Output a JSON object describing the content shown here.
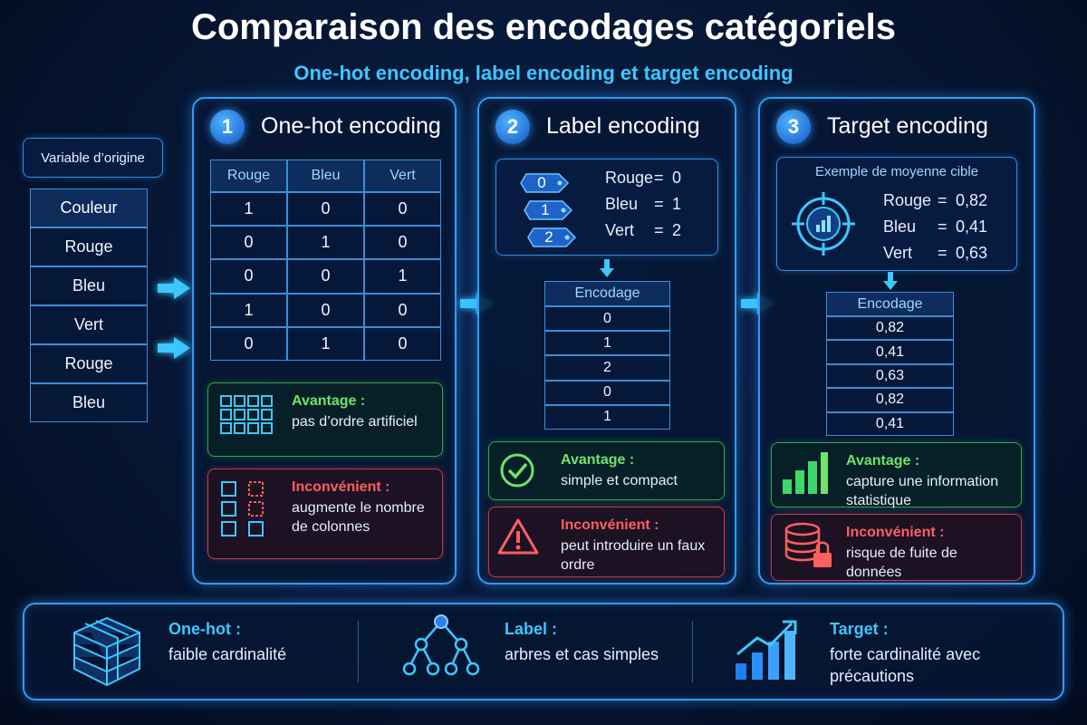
{
  "header": {
    "title": "Comparaison des encodages catégoriels",
    "subtitle": "One-hot encoding, label encoding et target encoding"
  },
  "source": {
    "label": "Variable d’origine",
    "header": "Couleur",
    "rows": [
      "Rouge",
      "Bleu",
      "Vert",
      "Rouge",
      "Bleu"
    ]
  },
  "panels": [
    {
      "number": 1,
      "title": "One-hot encoding",
      "table": {
        "columns": [
          "Rouge",
          "Bleu",
          "Vert"
        ],
        "rows": [
          [
            1,
            0,
            0
          ],
          [
            0,
            1,
            0
          ],
          [
            0,
            0,
            1
          ],
          [
            1,
            0,
            0
          ],
          [
            0,
            1,
            0
          ]
        ]
      },
      "pros": {
        "label": "Avantage :",
        "text": "pas d’ordre artificiel"
      },
      "cons": {
        "label": "Inconvénient :",
        "text": "augmente le nombre de colonnes"
      }
    },
    {
      "number": 2,
      "title": "Label encoding",
      "tags": [
        0,
        1,
        2
      ],
      "mapping": [
        {
          "name": "Rouge",
          "sign": "=",
          "code": 0
        },
        {
          "name": "Bleu",
          "sign": "=",
          "code": 1
        },
        {
          "name": "Vert",
          "sign": "=",
          "code": 2
        }
      ],
      "table": {
        "header": "Encodage",
        "rows": [
          0,
          1,
          2,
          0,
          1
        ]
      },
      "pros": {
        "label": "Avantage :",
        "text": "simple et compact"
      },
      "cons": {
        "label": "Inconvénient :",
        "text": "peut introduire un faux ordre"
      }
    },
    {
      "number": 3,
      "title": "Target encoding",
      "example_title": "Exemple de moyenne cible",
      "mapping": [
        {
          "name": "Rouge",
          "sign": "=",
          "code": "0,82"
        },
        {
          "name": "Bleu",
          "sign": "=",
          "code": "0,41"
        },
        {
          "name": "Vert",
          "sign": "=",
          "code": "0,63"
        }
      ],
      "table": {
        "header": "Encodage",
        "rows": [
          "0,82",
          "0,41",
          "0,63",
          "0,82",
          "0,41"
        ]
      },
      "pros": {
        "label": "Avantage :",
        "text": "capture une information statistique"
      },
      "cons": {
        "label": "Inconvénient :",
        "text": "risque de fuite de données"
      }
    }
  ],
  "footer": [
    {
      "label": "One-hot :",
      "text": "faible cardinalité"
    },
    {
      "label": "Label :",
      "text": "arbres et cas simples"
    },
    {
      "label": "Target :",
      "text": "forte cardinalité avec précautions"
    }
  ]
}
